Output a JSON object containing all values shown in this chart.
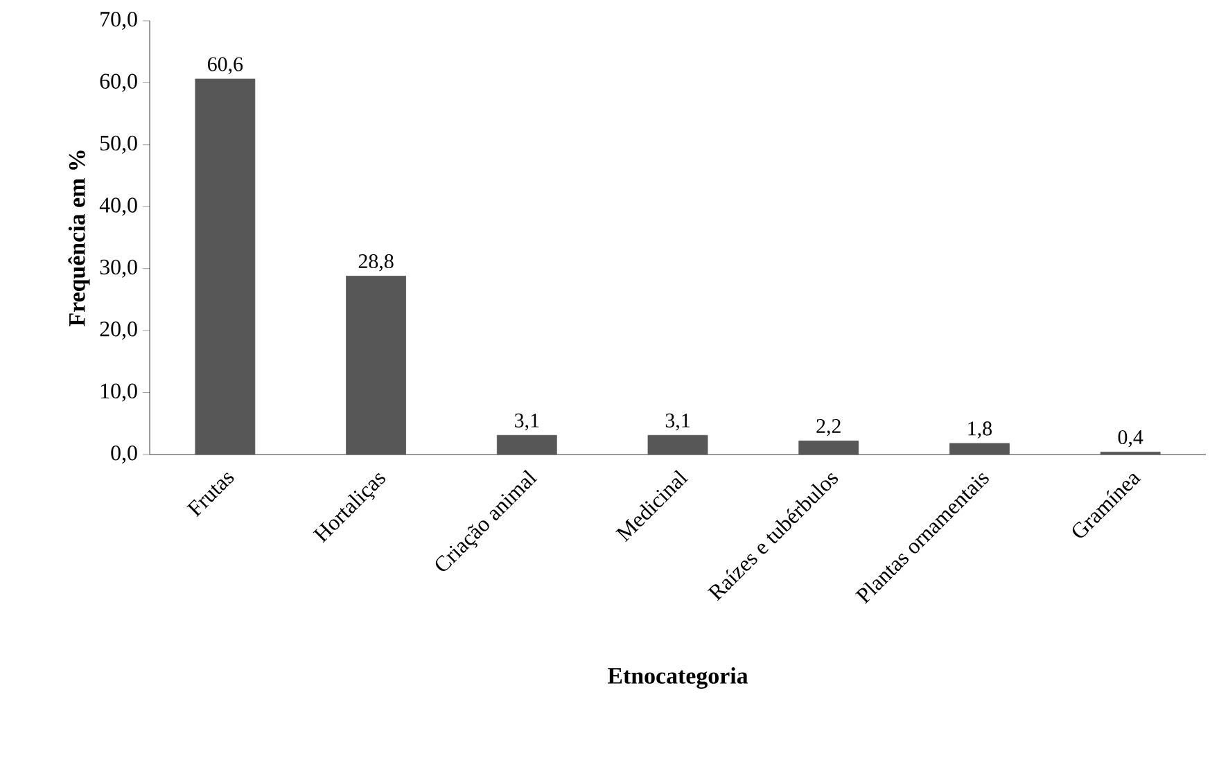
{
  "chart_data": {
    "type": "bar",
    "xlabel": "Etnocategoria",
    "ylabel": "Frequência em %",
    "categories": [
      "Frutas",
      "Hortaliças",
      "Criação animal",
      "Medicinal",
      "Raízes e tubérbulos",
      "Plantas ornamentais",
      "Gramínea"
    ],
    "values": [
      60.6,
      28.8,
      3.1,
      3.1,
      2.2,
      1.8,
      0.4
    ],
    "value_labels": [
      "60,6",
      "28,8",
      "3,1",
      "3,1",
      "2,2",
      "1,8",
      "0,4"
    ],
    "color": "#575757",
    "ylim": [
      0,
      70
    ],
    "yticks": [
      {
        "value": 0,
        "label": "0,0"
      },
      {
        "value": 10,
        "label": "10,0"
      },
      {
        "value": 20,
        "label": "20,0"
      },
      {
        "value": 30,
        "label": "30,0"
      },
      {
        "value": 40,
        "label": "40,0"
      },
      {
        "value": 50,
        "label": "50,0"
      },
      {
        "value": 60,
        "label": "60,0"
      },
      {
        "value": 70,
        "label": "70,0"
      }
    ],
    "grid": false
  }
}
